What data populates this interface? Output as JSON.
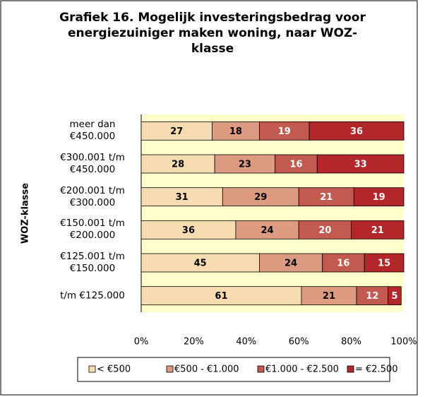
{
  "chart_data": {
    "type": "stacked_bar_horizontal",
    "title": "Grafiek 16. Mogelijk investeringsbedrag voor energiezuiniger maken woning, naar WOZ-klasse",
    "y_label": "WOZ-klasse",
    "categories": [
      "meer dan €450.000",
      "€300.001 t/m €450.000",
      "€200.001 t/m €300.000",
      "€150.001 t/m €200.000",
      "€125.001 t/m €150.000",
      "t/m €125.000"
    ],
    "series": [
      {
        "name": "< €500",
        "color": "#f6dcb0",
        "values": [
          27,
          28,
          31,
          36,
          45,
          61
        ]
      },
      {
        "name": "€500 - €1.000",
        "color": "#dc9a80",
        "values": [
          18,
          23,
          29,
          24,
          24,
          21
        ]
      },
      {
        "name": "€1.000 - €2.500",
        "color": "#c25a50",
        "values": [
          19,
          16,
          21,
          20,
          16,
          12
        ]
      },
      {
        "name": "= €2.500",
        "color": "#b3262a",
        "values": [
          36,
          33,
          19,
          21,
          15,
          5
        ]
      }
    ],
    "xlim": [
      0,
      100
    ],
    "xticks": [
      {
        "value": 0,
        "label": "0%"
      },
      {
        "value": 20,
        "label": "20%"
      },
      {
        "value": 40,
        "label": "40%"
      },
      {
        "value": 60,
        "label": "60%"
      },
      {
        "value": 80,
        "label": "80%"
      },
      {
        "value": 100,
        "label": "100%"
      }
    ],
    "legend": "bottom"
  }
}
